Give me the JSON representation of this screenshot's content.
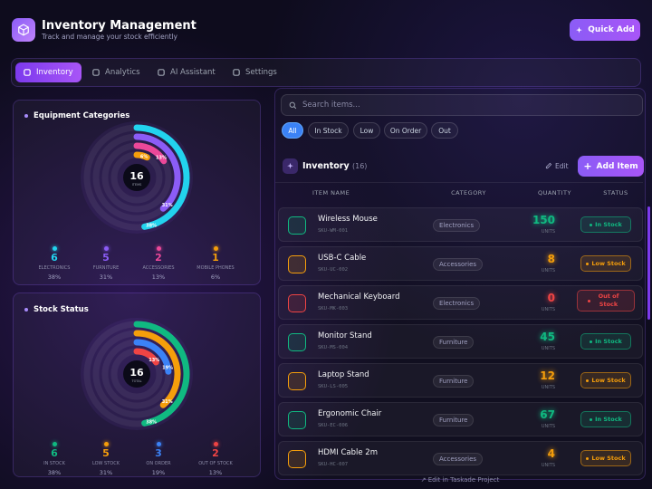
{
  "header": {
    "title": "Inventory Management",
    "subtitle": "Track and manage your stock efficiently",
    "action": "Quick Add"
  },
  "tabs": [
    "Inventory",
    "Analytics",
    "AI Assistant",
    "Settings"
  ],
  "categories_panel": {
    "title": "Equipment Categories",
    "center_value": "16",
    "center_label": "ITEMS",
    "items": [
      {
        "count": "6",
        "label": "ELECTRONICS",
        "share": 38,
        "share_label": "38%",
        "color": "#22d3ee"
      },
      {
        "count": "5",
        "label": "FURNITURE",
        "share": 31,
        "share_label": "31%",
        "color": "#8b5cf6"
      },
      {
        "count": "2",
        "label": "ACCESSORIES",
        "share": 13,
        "share_label": "13%",
        "color": "#ec4899"
      },
      {
        "count": "1",
        "label": "MOBILE PHONES",
        "share": 6,
        "share_label": "6%",
        "color": "#f59e0b"
      }
    ]
  },
  "status_panel": {
    "title": "Stock Status",
    "center_value": "16",
    "center_label": "TOTAL",
    "items": [
      {
        "count": "6",
        "label": "IN STOCK",
        "share": 38,
        "share_label": "38%",
        "color": "#10b981"
      },
      {
        "count": "5",
        "label": "LOW STOCK",
        "share": 31,
        "share_label": "31%",
        "color": "#f59e0b"
      },
      {
        "count": "3",
        "label": "ON ORDER",
        "share": 19,
        "share_label": "19%",
        "color": "#3b82f6"
      },
      {
        "count": "2",
        "label": "OUT OF STOCK",
        "share": 13,
        "share_label": "13%",
        "color": "#ef4444"
      }
    ]
  },
  "search_placeholder": "Search items...",
  "filters": [
    "All",
    "In Stock",
    "Low",
    "On Order",
    "Out"
  ],
  "inventory": {
    "title": "Inventory",
    "count": "(16)",
    "edit": "Edit",
    "add": "Add Item",
    "columns": [
      "ITEM NAME",
      "CATEGORY",
      "QUANTITY",
      "STATUS"
    ],
    "rows": [
      {
        "name": "Wireless Mouse",
        "sku": "SKU-WM-001",
        "category": "Electronics",
        "quantity": "150",
        "unit": "UNITS",
        "status": "In Stock",
        "color": "#10b981"
      },
      {
        "name": "USB-C Cable",
        "sku": "SKU-UC-002",
        "category": "Accessories",
        "quantity": "8",
        "unit": "UNITS",
        "status": "Low Stock",
        "color": "#f59e0b"
      },
      {
        "name": "Mechanical Keyboard",
        "sku": "SKU-MK-003",
        "category": "Electronics",
        "quantity": "0",
        "unit": "UNITS",
        "status": "Out of Stock",
        "color": "#ef4444"
      },
      {
        "name": "Monitor Stand",
        "sku": "SKU-MS-004",
        "category": "Furniture",
        "quantity": "45",
        "unit": "UNITS",
        "status": "In Stock",
        "color": "#10b981"
      },
      {
        "name": "Laptop Stand",
        "sku": "SKU-LS-005",
        "category": "Furniture",
        "quantity": "12",
        "unit": "UNITS",
        "status": "Low Stock",
        "color": "#f59e0b"
      },
      {
        "name": "Ergonomic Chair",
        "sku": "SKU-EC-006",
        "category": "Furniture",
        "quantity": "67",
        "unit": "UNITS",
        "status": "In Stock",
        "color": "#10b981"
      },
      {
        "name": "HDMI Cable 2m",
        "sku": "SKU-HC-007",
        "category": "Accessories",
        "quantity": "4",
        "unit": "UNITS",
        "status": "Low Stock",
        "color": "#f59e0b"
      }
    ]
  },
  "footer": "Edit in Taskade Project"
}
